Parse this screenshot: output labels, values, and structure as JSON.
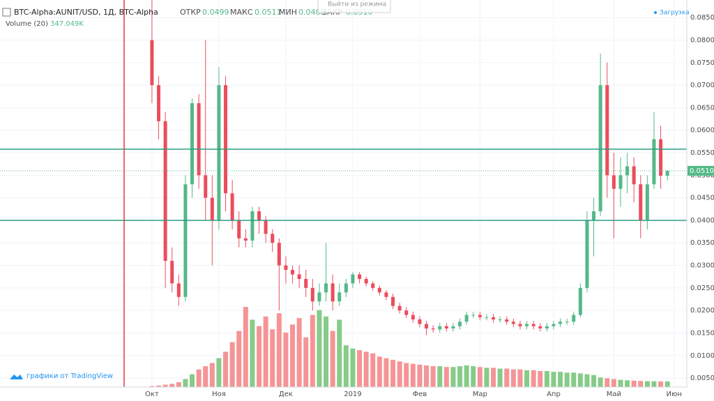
{
  "header": {
    "symbol": "BTC-Alpha:AUNIT/USD, 1Д, BTC-Alpha",
    "open_label": "ОТКР",
    "open": "0.0499",
    "high_label": "МАКС",
    "high": "0.0511",
    "low_label": "МИН",
    "low": "0.0488",
    "close_label": "ЗАКР",
    "close": "0.0510",
    "volume_label": "Volume (20)",
    "volume": "347.049K",
    "loading": "Загрузка",
    "tooltip": "Выйти из режима",
    "branding": "графики от TradingView"
  },
  "chart_data": {
    "type": "candlestick",
    "open": [
      0.08,
      0.07,
      0.062,
      0.031,
      0.026,
      0.023,
      0.048,
      0.066,
      0.05,
      0.045,
      0.04,
      0.07,
      0.046,
      0.04,
      0.036,
      0.0355,
      0.042,
      0.04,
      0.037,
      0.035,
      0.03,
      0.029,
      0.028,
      0.027,
      0.025,
      0.022,
      0.024,
      0.026,
      0.022,
      0.024,
      0.026,
      0.028,
      0.027,
      0.026,
      0.025,
      0.024,
      0.023,
      0.021,
      0.02,
      0.019,
      0.018,
      0.017,
      0.016,
      0.0158,
      0.0165,
      0.016,
      0.0165,
      0.0175,
      0.019,
      0.019,
      0.0185,
      0.0185,
      0.018,
      0.018,
      0.0175,
      0.017,
      0.0165,
      0.017,
      0.0165,
      0.016,
      0.0165,
      0.017,
      0.0175,
      0.0175,
      0.019,
      0.025,
      0.04,
      0.042,
      0.07,
      0.05,
      0.047,
      0.05,
      0.052,
      0.048,
      0.04,
      0.048,
      0.058,
      0.0499
    ],
    "high": [
      0.0889,
      0.072,
      0.064,
      0.034,
      0.028,
      0.05,
      0.067,
      0.068,
      0.08,
      0.05,
      0.074,
      0.072,
      0.049,
      0.042,
      0.038,
      0.043,
      0.043,
      0.041,
      0.038,
      0.036,
      0.032,
      0.03,
      0.03,
      0.029,
      0.027,
      0.026,
      0.035,
      0.028,
      0.026,
      0.027,
      0.0285,
      0.0285,
      0.0275,
      0.0265,
      0.0255,
      0.0245,
      0.0237,
      0.0217,
      0.0207,
      0.0197,
      0.0187,
      0.0177,
      0.0167,
      0.0172,
      0.0172,
      0.0172,
      0.0182,
      0.0197,
      0.0197,
      0.0197,
      0.0192,
      0.0192,
      0.0187,
      0.0187,
      0.0182,
      0.0177,
      0.0177,
      0.0177,
      0.0172,
      0.0172,
      0.0177,
      0.0182,
      0.0182,
      0.0197,
      0.026,
      0.042,
      0.045,
      0.077,
      0.075,
      0.055,
      0.054,
      0.055,
      0.054,
      0.05,
      0.05,
      0.064,
      0.061,
      0.0511
    ],
    "low": [
      0.066,
      0.058,
      0.025,
      0.024,
      0.021,
      0.022,
      0.045,
      0.047,
      0.04,
      0.03,
      0.038,
      0.042,
      0.038,
      0.034,
      0.034,
      0.034,
      0.037,
      0.035,
      0.033,
      0.02,
      0.026,
      0.026,
      0.025,
      0.023,
      0.02,
      0.021,
      0.022,
      0.02,
      0.021,
      0.023,
      0.025,
      0.026,
      0.0253,
      0.0243,
      0.0233,
      0.0223,
      0.0203,
      0.0193,
      0.0183,
      0.0173,
      0.0163,
      0.0145,
      0.0151,
      0.0151,
      0.0153,
      0.0153,
      0.0158,
      0.0168,
      0.0183,
      0.0178,
      0.0178,
      0.0173,
      0.0173,
      0.0168,
      0.0163,
      0.0158,
      0.0158,
      0.0158,
      0.0153,
      0.0153,
      0.0158,
      0.0163,
      0.0168,
      0.0168,
      0.0185,
      0.024,
      0.032,
      0.041,
      0.045,
      0.036,
      0.043,
      0.046,
      0.044,
      0.036,
      0.038,
      0.047,
      0.047,
      0.0488
    ],
    "close": [
      0.07,
      0.062,
      0.031,
      0.026,
      0.023,
      0.048,
      0.066,
      0.05,
      0.045,
      0.04,
      0.07,
      0.046,
      0.04,
      0.036,
      0.0355,
      0.042,
      0.04,
      0.037,
      0.035,
      0.03,
      0.029,
      0.028,
      0.027,
      0.025,
      0.022,
      0.024,
      0.026,
      0.022,
      0.024,
      0.026,
      0.028,
      0.027,
      0.026,
      0.025,
      0.024,
      0.023,
      0.021,
      0.02,
      0.019,
      0.018,
      0.017,
      0.016,
      0.0158,
      0.0165,
      0.016,
      0.0165,
      0.0175,
      0.019,
      0.019,
      0.0185,
      0.0185,
      0.018,
      0.018,
      0.0175,
      0.017,
      0.0165,
      0.017,
      0.0165,
      0.016,
      0.0165,
      0.017,
      0.0175,
      0.0175,
      0.019,
      0.025,
      0.04,
      0.042,
      0.07,
      0.05,
      0.047,
      0.05,
      0.052,
      0.048,
      0.04,
      0.048,
      0.058,
      0.0499,
      0.051
    ],
    "volume": [
      60000,
      90000,
      150000,
      200000,
      300000,
      500000,
      800000,
      1100000,
      1300000,
      1500000,
      1800000,
      2200000,
      2800000,
      3500000,
      5000000,
      4200000,
      3800000,
      4400000,
      3600000,
      4600000,
      3400000,
      3900000,
      4300000,
      3100000,
      4500000,
      4800000,
      4400000,
      3500000,
      4200000,
      2600000,
      2400000,
      2300000,
      2200000,
      2100000,
      1900000,
      1800000,
      1700000,
      1600000,
      1500000,
      1450000,
      1400000,
      1350000,
      1300000,
      1300000,
      1250000,
      1250000,
      1300000,
      1350000,
      1300000,
      1250000,
      1200000,
      1200000,
      1150000,
      1150000,
      1100000,
      1100000,
      1050000,
      1050000,
      1000000,
      1000000,
      950000,
      950000,
      900000,
      900000,
      850000,
      800000,
      750000,
      600000,
      550000,
      500000,
      450000,
      420000,
      400000,
      380000,
      370000,
      360000,
      350000,
      347049
    ],
    "up_color": "#53b987",
    "down_color": "#eb4d5c",
    "volume_up_color": "#86cb88",
    "volume_down_color": "#f59496",
    "xlim": [
      -22.7,
      79.9
    ],
    "xticks": [
      {
        "value": 0,
        "label": "Окт"
      },
      {
        "value": 10,
        "label": "Ноя"
      },
      {
        "value": 20,
        "label": "Дек"
      },
      {
        "value": 30,
        "label": "2019"
      },
      {
        "value": 40,
        "label": "Фев"
      },
      {
        "value": 49,
        "label": "Мар"
      },
      {
        "value": 60,
        "label": "Апр"
      },
      {
        "value": 69,
        "label": "Май"
      },
      {
        "value": 78,
        "label": "Июн"
      }
    ],
    "ylim": [
      0.003,
      0.0889
    ],
    "yticks": [
      {
        "value": 0.085,
        "label": "0.0850"
      },
      {
        "value": 0.08,
        "label": "0.0800"
      },
      {
        "value": 0.075,
        "label": "0.0750"
      },
      {
        "value": 0.07,
        "label": "0.0700"
      },
      {
        "value": 0.065,
        "label": "0.0650"
      },
      {
        "value": 0.06,
        "label": "0.0600"
      },
      {
        "value": 0.055,
        "label": "0.0550"
      },
      {
        "value": 0.05,
        "label": "0.0500"
      },
      {
        "value": 0.045,
        "label": "0.0450"
      },
      {
        "value": 0.04,
        "label": "0.0400"
      },
      {
        "value": 0.035,
        "label": "0.0350"
      },
      {
        "value": 0.03,
        "label": "0.0300"
      },
      {
        "value": 0.025,
        "label": "0.0250"
      },
      {
        "value": 0.02,
        "label": "0.0200"
      },
      {
        "value": 0.015,
        "label": "0.0150"
      },
      {
        "value": 0.01,
        "label": "0.0100"
      },
      {
        "value": 0.005,
        "label": "0.0050"
      }
    ],
    "hlines": [
      0.0558,
      0.04
    ],
    "hline_color": "#2e9c82",
    "grid": true
  }
}
